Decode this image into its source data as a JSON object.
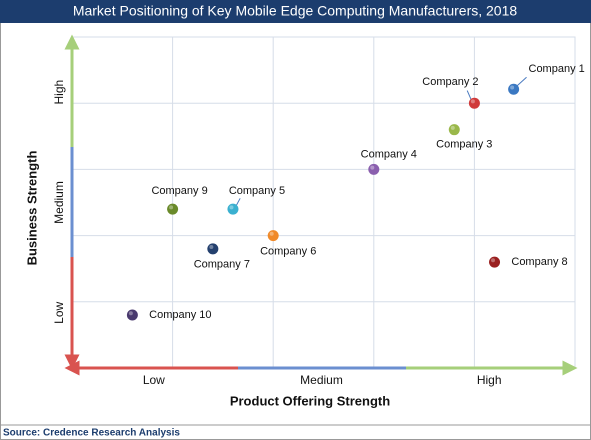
{
  "chart_data": {
    "type": "scatter",
    "title": "Market Positioning of Key Mobile Edge Computing Manufacturers, 2018",
    "x_label": "Product Offering Strength",
    "y_label": "Business Strength",
    "x_regions": [
      "Low",
      "Medium",
      "High"
    ],
    "y_regions": [
      "Low",
      "Medium",
      "High"
    ],
    "xlim": [
      0,
      5
    ],
    "ylim": [
      0,
      5
    ],
    "xticks": [
      1,
      2,
      3,
      4
    ],
    "yticks": [
      1,
      2,
      3,
      4
    ],
    "grid": true,
    "points": [
      {
        "name": "Company 1",
        "x": 4.39,
        "y": 4.21,
        "color": "#3a78c2"
      },
      {
        "name": "Company 2",
        "x": 4.0,
        "y": 4.0,
        "color": "#d03a3a"
      },
      {
        "name": "Company 3",
        "x": 3.8,
        "y": 3.6,
        "color": "#9ab84a"
      },
      {
        "name": "Company 4",
        "x": 3.0,
        "y": 3.0,
        "color": "#8a5fae"
      },
      {
        "name": "Company 5",
        "x": 1.6,
        "y": 2.4,
        "color": "#3ab0d0"
      },
      {
        "name": "Company 6",
        "x": 2.0,
        "y": 2.0,
        "color": "#f08a2a"
      },
      {
        "name": "Company 7",
        "x": 1.4,
        "y": 1.8,
        "color": "#24406e"
      },
      {
        "name": "Company 8",
        "x": 4.2,
        "y": 1.6,
        "color": "#9a2020"
      },
      {
        "name": "Company 9",
        "x": 1.0,
        "y": 2.4,
        "color": "#6a8a2a"
      },
      {
        "name": "Company 10",
        "x": 0.6,
        "y": 0.8,
        "color": "#4a3a6e"
      }
    ]
  },
  "source": "Source: Credence Research Analysis"
}
